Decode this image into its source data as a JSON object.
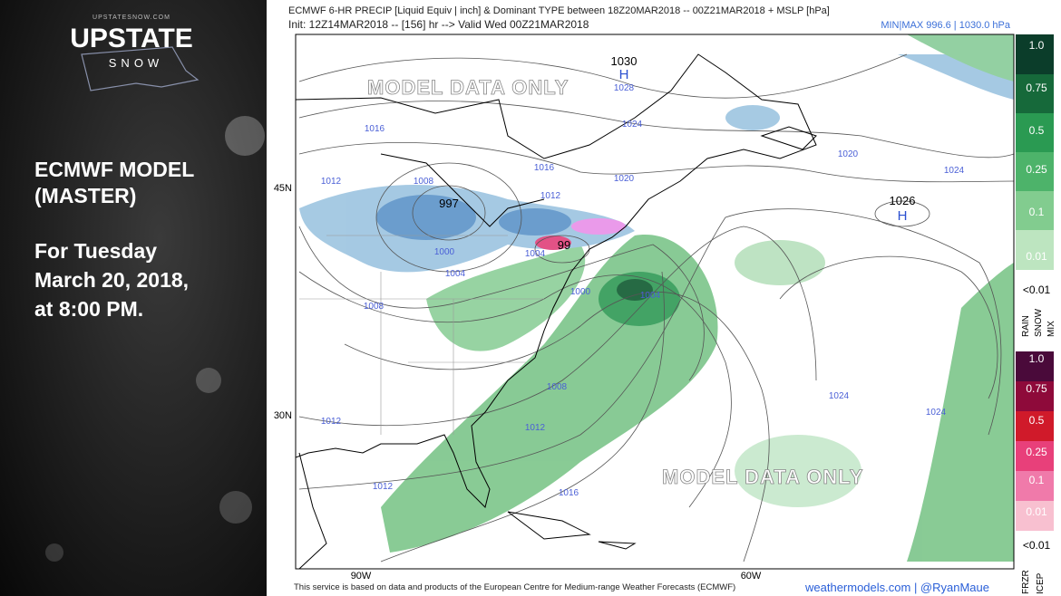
{
  "logo": {
    "site": "UPSTATESNOW.COM",
    "title": "UPSTATE",
    "subtitle": "SNOW"
  },
  "sidebar": {
    "lines": [
      "ECMWF MODEL",
      "(MASTER)",
      "For Tuesday",
      "March 20, 2018,",
      "at 8:00 PM."
    ]
  },
  "map": {
    "title": "ECMWF 6-HR PRECIP [Liquid Equiv | inch] & Dominant TYPE between 18Z20MAR2018 -- 00Z21MAR2018 + MSLP [hPa]",
    "init": "Init: 12Z14MAR2018 -- [156] hr --> Valid Wed 00Z21MAR2018",
    "minmax": "MIN|MAX 996.6 | 1030.0 hPa",
    "watermarks": [
      "MODEL DATA ONLY",
      "MODEL DATA ONLY"
    ],
    "lat_labels": [
      "45N",
      "30N"
    ],
    "lon_labels": [
      "90W",
      "60W"
    ],
    "pressure_labels": [
      "1030",
      "H",
      "1028",
      "1024",
      "1016",
      "1016",
      "1020",
      "1012",
      "1008",
      "997",
      "1012",
      "1020",
      "1024",
      "1026",
      "H",
      "1000",
      "1004",
      "99",
      "1004",
      "1008",
      "1000",
      "1004",
      "1008",
      "1024",
      "1024",
      "1012",
      "1012",
      "1012",
      "1016"
    ]
  },
  "legend": {
    "rain_scale": [
      "1.0",
      "0.75",
      "0.5",
      "0.25",
      "0.1",
      "0.01"
    ],
    "rain_min": "<0.01",
    "rain_types": [
      "RAIN",
      "SNOW",
      "MIX"
    ],
    "ice_scale": [
      "1.0",
      "0.75",
      "0.5",
      "0.25",
      "0.1",
      "0.01"
    ],
    "ice_min": "<0.01",
    "ice_types": [
      "FRZR",
      "ICEP"
    ]
  },
  "footer": {
    "credit": "This service is based on data and products of the European Centre for Medium-range Weather Forecasts (ECMWF)",
    "site": "weathermodels.com | @RyanMaue"
  }
}
